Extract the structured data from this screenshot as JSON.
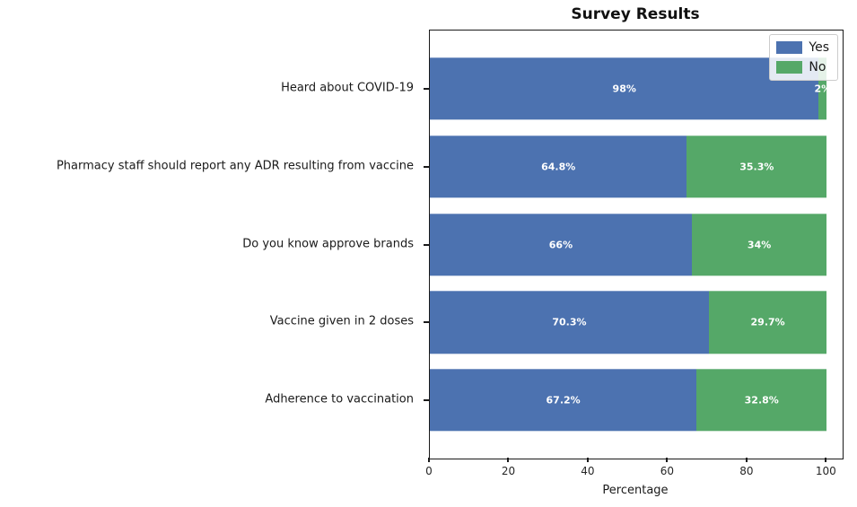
{
  "chart_data": {
    "type": "bar",
    "orientation": "horizontal",
    "stacked": true,
    "title": "Survey Results",
    "xlabel": "Percentage",
    "xlim": [
      0,
      104
    ],
    "xticks": [
      0,
      20,
      40,
      60,
      80,
      100
    ],
    "grid": false,
    "categories": [
      "Heard about COVID-19",
      "Pharmacy staff should report any ADR resulting from vaccine",
      "Do you know approve brands",
      "Vaccine given in 2 doses",
      "Adherence to vaccination"
    ],
    "series": [
      {
        "name": "Yes",
        "color": "#4C72B0",
        "values": [
          98,
          64.8,
          66,
          70.3,
          67.2
        ],
        "labels": [
          "98%",
          "64.8%",
          "66%",
          "70.3%",
          "67.2%"
        ]
      },
      {
        "name": "No",
        "color": "#55A868",
        "values": [
          2,
          35.3,
          34,
          29.7,
          32.8
        ],
        "labels": [
          "2%",
          "35.3%",
          "34%",
          "29.7%",
          "32.8%"
        ]
      }
    ],
    "legend": {
      "position": "upper right",
      "entries": [
        "Yes",
        "No"
      ]
    }
  }
}
